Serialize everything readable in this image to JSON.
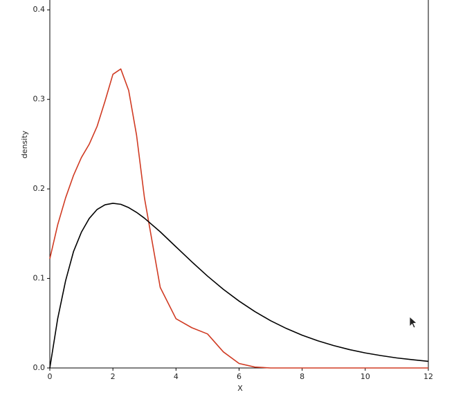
{
  "chart_data": {
    "type": "line",
    "x_label": "X",
    "y_label": "density",
    "x": [
      0,
      0.25,
      0.5,
      0.75,
      1,
      1.25,
      1.5,
      1.75,
      2,
      2.25,
      2.5,
      2.75,
      3,
      3.5,
      4,
      4.5,
      5,
      5.5,
      6,
      6.5,
      7,
      7.5,
      8,
      8.5,
      9,
      9.5,
      10,
      10.5,
      11,
      11.5,
      12
    ],
    "series": [
      {
        "color": "#d03a22",
        "values": [
          0.122,
          0.16,
          0.19,
          0.215,
          0.235,
          0.25,
          0.27,
          0.298,
          0.328,
          0.334,
          0.31,
          0.26,
          0.19,
          0.09,
          0.055,
          0.045,
          0.038,
          0.018,
          0.005,
          0.001,
          0,
          0,
          0,
          0,
          0,
          0,
          0,
          0,
          0,
          0,
          0
        ]
      },
      {
        "color": "#000000",
        "values": [
          0,
          0.0552,
          0.0974,
          0.1299,
          0.1516,
          0.167,
          0.1771,
          0.1823,
          0.1839,
          0.1828,
          0.1791,
          0.1738,
          0.1673,
          0.1521,
          0.1353,
          0.1186,
          0.1026,
          0.0879,
          0.0747,
          0.063,
          0.0528,
          0.0441,
          0.0366,
          0.0303,
          0.025,
          0.0205,
          0.0168,
          0.0138,
          0.0112,
          0.0092,
          0.0074
        ]
      }
    ],
    "xlim": [
      0,
      12
    ],
    "xticks": [
      0,
      2,
      4,
      6,
      8,
      10,
      12
    ],
    "ylim": [
      0,
      0.411
    ],
    "yticks": [
      {
        "value": 0,
        "label": "0.0"
      },
      0.1,
      0.2,
      0.3,
      0.4
    ]
  }
}
